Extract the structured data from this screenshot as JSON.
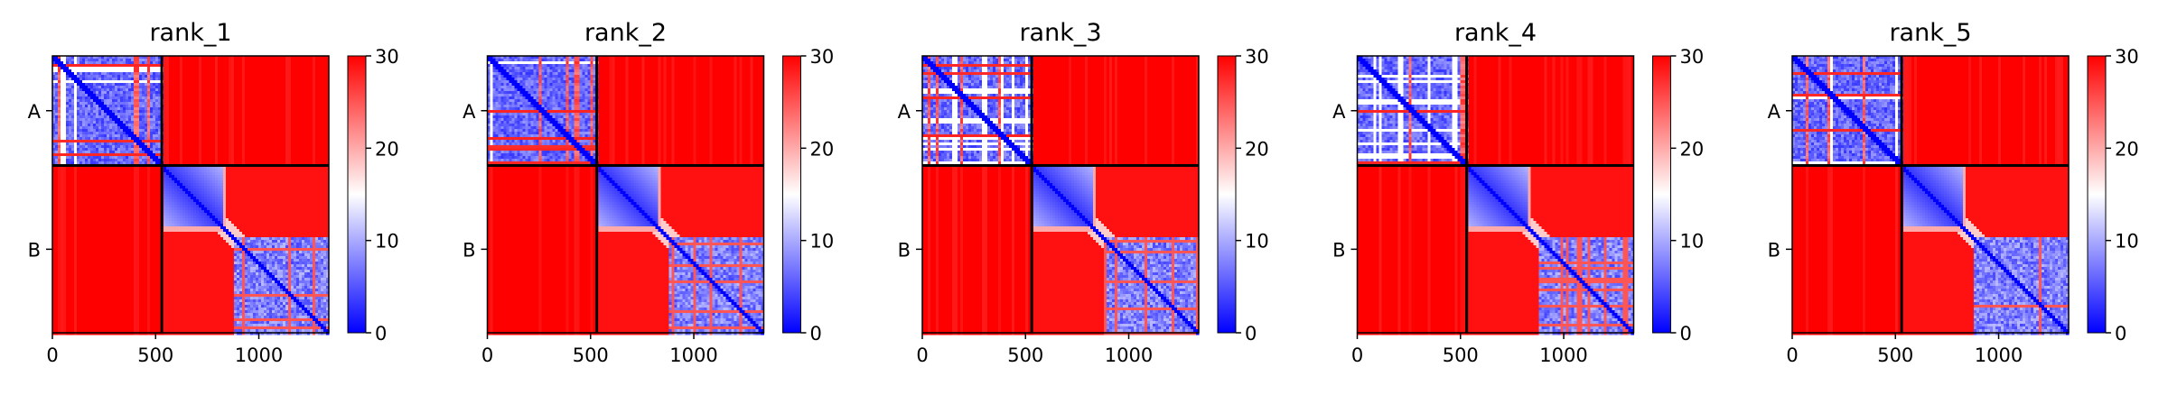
{
  "chart_data": {
    "type": "heatmap",
    "colormap": {
      "name": "bwr",
      "low_color": "#0000ff",
      "mid_color": "#ffffff",
      "high_color": "#ff0000",
      "vmin": 0,
      "vmax": 30
    },
    "colorbar_ticks": [
      0,
      10,
      20,
      30
    ],
    "x_ticks": [
      0,
      500,
      1000
    ],
    "xlim": [
      0,
      1339
    ],
    "ylim": [
      1339,
      0
    ],
    "chain_boundary": 530,
    "y_ticks": [
      {
        "label": "A",
        "position": 265
      },
      {
        "label": "B",
        "position": 935
      }
    ],
    "panels": [
      {
        "title": "rank_1"
      },
      {
        "title": "rank_2"
      },
      {
        "title": "rank_3"
      },
      {
        "title": "rank_4"
      },
      {
        "title": "rank_5"
      }
    ],
    "grid": false,
    "legend": "colorbar-right"
  }
}
